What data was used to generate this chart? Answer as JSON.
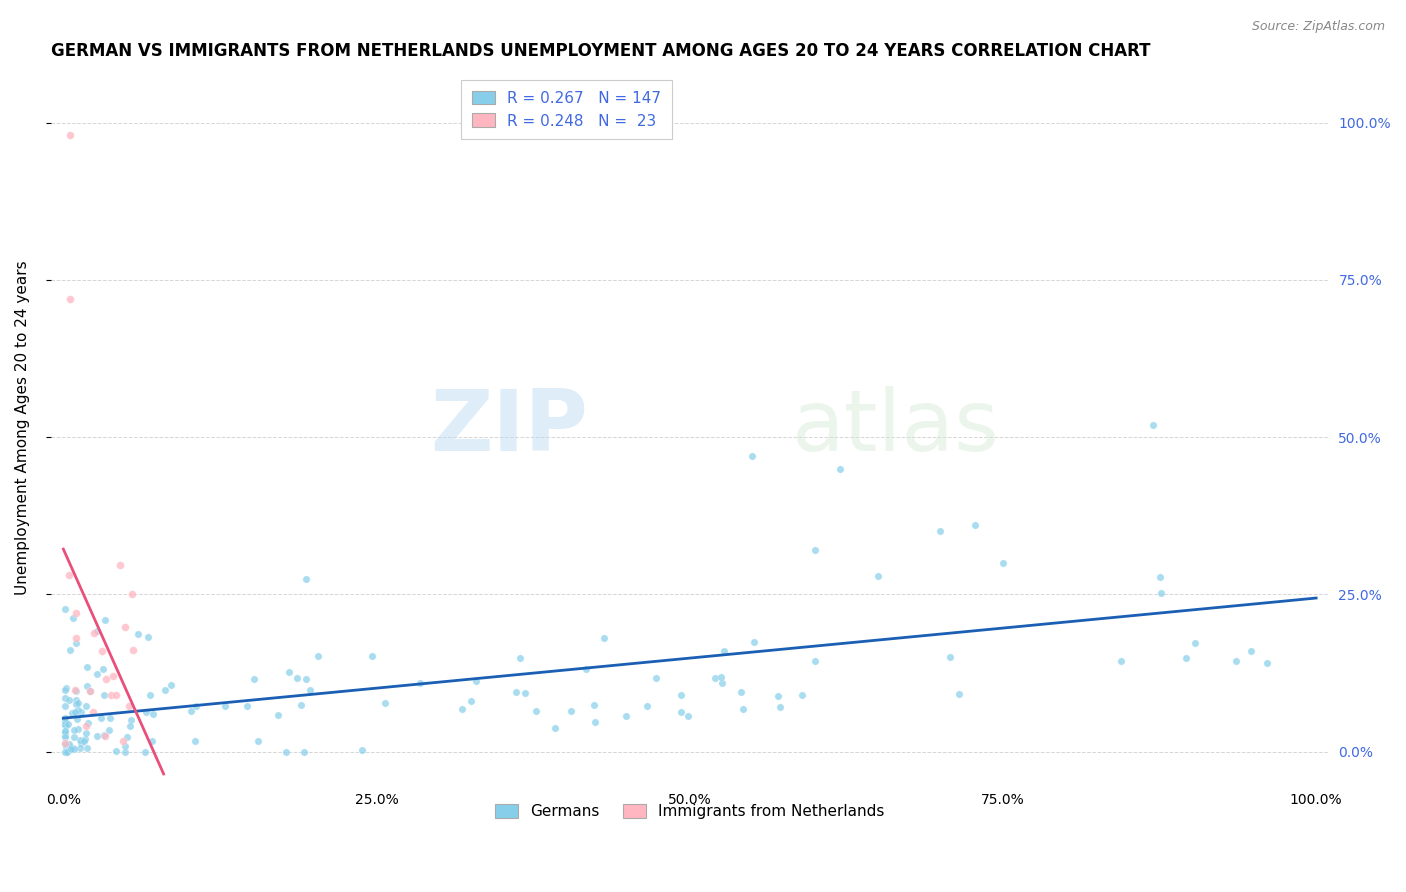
{
  "title": "GERMAN VS IMMIGRANTS FROM NETHERLANDS UNEMPLOYMENT AMONG AGES 20 TO 24 YEARS CORRELATION CHART",
  "source": "Source: ZipAtlas.com",
  "ylabel": "Unemployment Among Ages 20 to 24 years",
  "xlim": [
    -0.01,
    1.01
  ],
  "ylim": [
    -0.05,
    1.08
  ],
  "yticks_right": [
    0.0,
    0.25,
    0.5,
    0.75,
    1.0
  ],
  "ytick_labels_right": [
    "0.0%",
    "25.0%",
    "50.0%",
    "75.0%",
    "100.0%"
  ],
  "xtick_labels": [
    "0.0%",
    "25.0%",
    "50.0%",
    "75.0%",
    "100.0%"
  ],
  "legend_r1": "R = 0.267",
  "legend_n1": "N = 147",
  "legend_r2": "R = 0.248",
  "legend_n2": "N =  23",
  "legend_label1": "Germans",
  "legend_label2": "Immigrants from Netherlands",
  "color_blue": "#87CEEB",
  "color_pink": "#FFB6C1",
  "trend_color_blue": "#1a5fb4",
  "trend_color_pink": "#e8507a",
  "watermark_zip": "ZIP",
  "watermark_atlas": "atlas",
  "title_fontsize": 12,
  "axis_label_fontsize": 11,
  "tick_fontsize": 10
}
